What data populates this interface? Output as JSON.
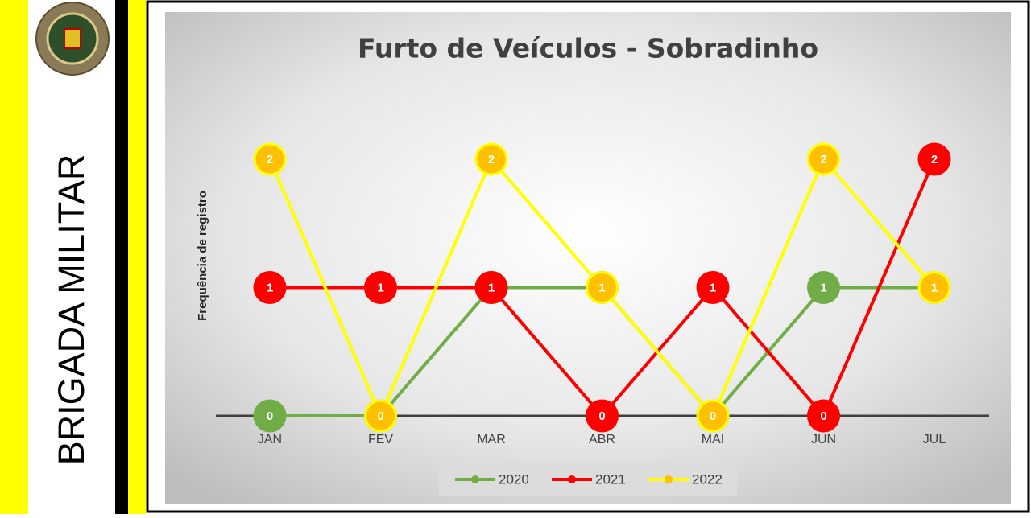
{
  "sidebar": {
    "label": "BRIGADA MILITAR"
  },
  "chart_data": {
    "type": "line",
    "title": "Furto de Veículos - Sobradinho",
    "y_label": "Frequência de registro",
    "categories": [
      "JAN",
      "FEV",
      "MAR",
      "ABR",
      "MAI",
      "JUN",
      "JUL"
    ],
    "series": [
      {
        "name": "2020",
        "color": "#70ad47",
        "marker_color": "#70ad47",
        "values": [
          0,
          0,
          1,
          1,
          0,
          1,
          1
        ]
      },
      {
        "name": "2021",
        "color": "#ff0000",
        "marker_color": "#ff0000",
        "values": [
          1,
          1,
          1,
          0,
          1,
          0,
          2
        ]
      },
      {
        "name": "2022",
        "color": "#ffff00",
        "marker_color": "#ffc000",
        "values": [
          2,
          0,
          2,
          1,
          0,
          2,
          1
        ]
      }
    ],
    "ylim": [
      0,
      2
    ],
    "legend": "bottom"
  }
}
